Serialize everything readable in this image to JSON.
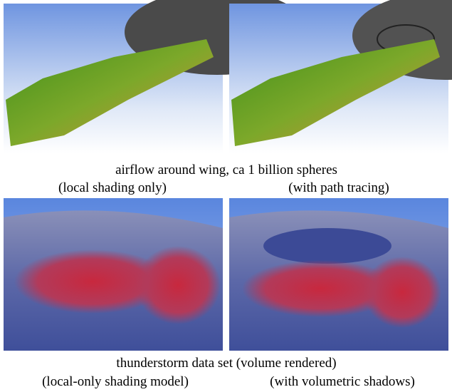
{
  "figures": [
    {
      "caption": "airflow around wing, ca 1 billion spheres",
      "panels": [
        {
          "label": "(local shading only)"
        },
        {
          "label": "(with path tracing)"
        }
      ]
    },
    {
      "caption": "thunderstorm data set (volume rendered)",
      "panels": [
        {
          "label": "(local-only shading model)"
        },
        {
          "label": "(with volumetric shadows)"
        }
      ]
    }
  ]
}
